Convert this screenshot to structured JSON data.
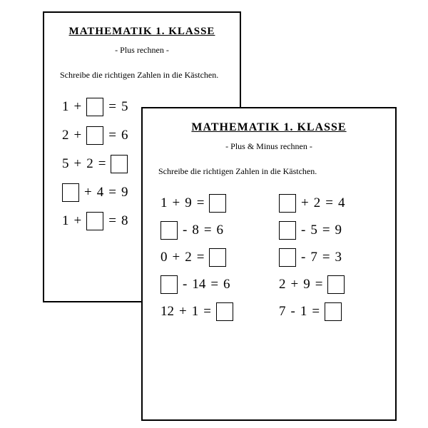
{
  "colors": {
    "page_bg": "#ffffff",
    "sheet_bg": "#ffffff",
    "border": "#000000",
    "text": "#000000"
  },
  "typography": {
    "heading_font": "Comic Sans MS, cursive",
    "body_font": "Georgia, serif",
    "title_fontsize": 15,
    "subtitle_fontsize": 12,
    "instruction_fontsize": 12,
    "problem_fontsize": 19
  },
  "back_sheet": {
    "title": "MATHEMATIK 1. KLASSE",
    "subtitle": "- Plus rechnen -",
    "instructions": "Schreibe die richtigen Zahlen in die Kästchen.",
    "problems": [
      {
        "tokens": [
          "1",
          "+",
          "□",
          "=",
          "5"
        ]
      },
      {
        "tokens": [
          "2",
          "+",
          "□",
          "=",
          "6"
        ]
      },
      {
        "tokens": [
          "5",
          "+",
          "2",
          "=",
          "□"
        ]
      },
      {
        "tokens": [
          "□",
          "+",
          "4",
          "=",
          "9"
        ]
      },
      {
        "tokens": [
          "1",
          "+",
          "□",
          "=",
          "8"
        ]
      }
    ]
  },
  "front_sheet": {
    "title": "MATHEMATIK 1. KLASSE",
    "subtitle": "- Plus & Minus rechnen -",
    "instructions": "Schreibe die richtigen Zahlen in die Kästchen.",
    "left_column": [
      {
        "tokens": [
          "1",
          "+",
          "9",
          "=",
          "□"
        ]
      },
      {
        "tokens": [
          "□",
          "-",
          "8",
          "=",
          "6"
        ]
      },
      {
        "tokens": [
          "0",
          "+",
          "2",
          "=",
          "□"
        ]
      },
      {
        "tokens": [
          "□",
          "-",
          "14",
          "=",
          "6"
        ]
      },
      {
        "tokens": [
          "12",
          "+",
          "1",
          "=",
          "□"
        ]
      }
    ],
    "right_column": [
      {
        "tokens": [
          "□",
          "+",
          "2",
          "=",
          "4"
        ]
      },
      {
        "tokens": [
          "□",
          "-",
          "5",
          "=",
          "9"
        ]
      },
      {
        "tokens": [
          "□",
          "-",
          "7",
          "=",
          "3"
        ]
      },
      {
        "tokens": [
          "2",
          "+",
          "9",
          "=",
          "□"
        ]
      },
      {
        "tokens": [
          "7",
          "-",
          "1",
          "=",
          "□"
        ]
      }
    ]
  }
}
